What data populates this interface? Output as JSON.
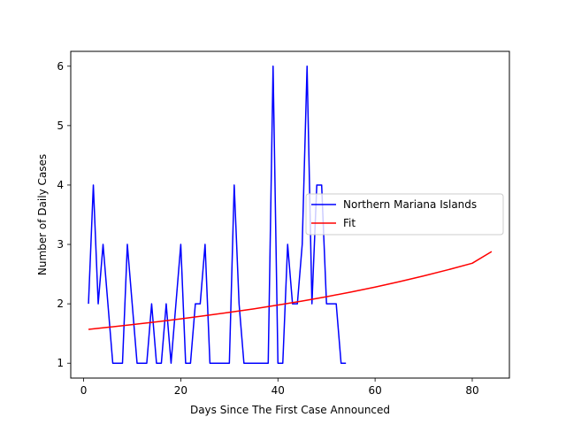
{
  "chart_data": {
    "type": "line",
    "title": "",
    "xlabel": "Days Since The First Case Announced",
    "ylabel": "Number of Daily Cases",
    "xlim": [
      -2.65,
      87.65
    ],
    "ylim": [
      0.75,
      6.25
    ],
    "xticks": [
      0,
      20,
      40,
      60,
      80
    ],
    "yticks": [
      1,
      2,
      3,
      4,
      5,
      6
    ],
    "grid": false,
    "legend": {
      "placement": "center-right",
      "entries": [
        "Northern Mariana Islands",
        "Fit"
      ]
    },
    "series": [
      {
        "name": "Northern Mariana Islands",
        "color": "#0000ff",
        "x": [
          1,
          2,
          3,
          4,
          5,
          6,
          7,
          8,
          9,
          10,
          11,
          12,
          13,
          14,
          15,
          16,
          17,
          18,
          19,
          20,
          21,
          22,
          23,
          24,
          25,
          26,
          27,
          28,
          29,
          30,
          31,
          32,
          33,
          34,
          35,
          36,
          37,
          38,
          39,
          40,
          41,
          42,
          43,
          44,
          45,
          46,
          47,
          48,
          49,
          50,
          51,
          52,
          53,
          54
        ],
        "values": [
          2,
          4,
          2,
          3,
          2,
          1,
          1,
          1,
          3,
          2,
          1,
          1,
          1,
          2,
          1,
          1,
          2,
          1,
          2,
          3,
          1,
          1,
          2,
          2,
          3,
          1,
          1,
          1,
          1,
          1,
          4,
          2,
          1,
          1,
          1,
          1,
          1,
          1,
          6,
          1,
          1,
          3,
          2,
          2,
          3,
          6,
          2,
          4,
          4,
          2,
          2,
          2,
          1,
          1
        ]
      },
      {
        "name": "Fit",
        "color": "#ff0000",
        "x": [
          1,
          5,
          10,
          15,
          20,
          25,
          30,
          35,
          40,
          45,
          50,
          55,
          60,
          65,
          70,
          75,
          80,
          84
        ],
        "values": [
          1.57,
          1.605,
          1.65,
          1.697,
          1.747,
          1.8,
          1.856,
          1.915,
          1.979,
          2.046,
          2.12,
          2.198,
          2.282,
          2.373,
          2.47,
          2.573,
          2.683,
          2.88
        ]
      }
    ]
  }
}
